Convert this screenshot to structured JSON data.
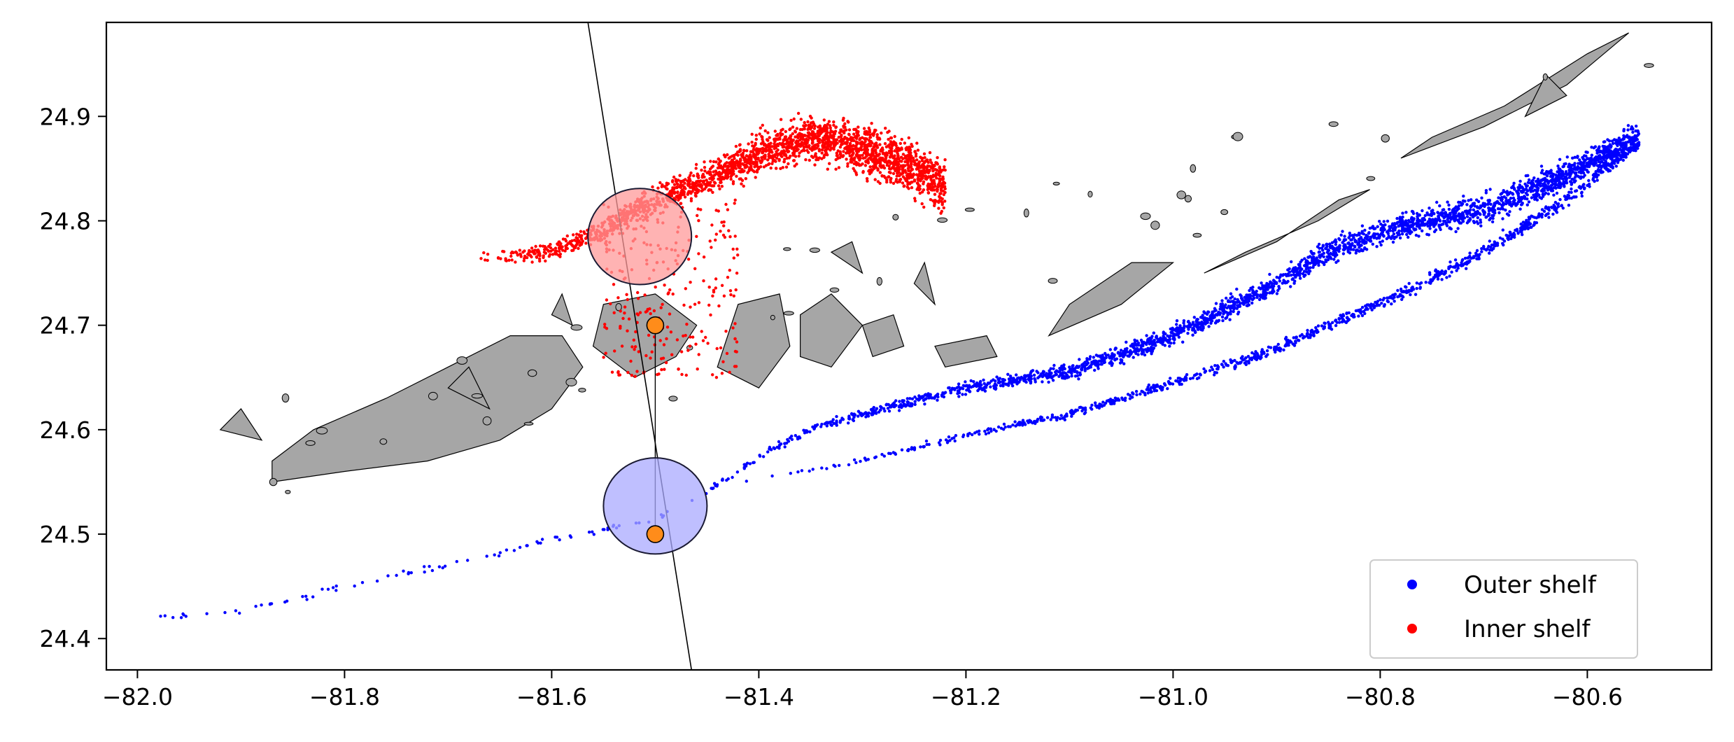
{
  "chart_data": {
    "type": "scatter",
    "title": "",
    "xlabel": "",
    "ylabel": "",
    "xlim": [
      -82.03,
      -80.48
    ],
    "ylim": [
      24.37,
      24.99
    ],
    "xticks": [
      -82.0,
      -81.8,
      -81.6,
      -81.4,
      -81.2,
      -81.0,
      -80.8,
      -80.6
    ],
    "xtick_labels": [
      "−82.0",
      "−81.8",
      "−81.6",
      "−81.4",
      "−81.2",
      "−81.0",
      "−80.8",
      "−80.6"
    ],
    "yticks": [
      24.4,
      24.5,
      24.6,
      24.7,
      24.8,
      24.9
    ],
    "ytick_labels": [
      "24.4",
      "24.5",
      "24.6",
      "24.7",
      "24.8",
      "24.9"
    ],
    "grid": false,
    "legend_position": "lower-right",
    "series": [
      {
        "name": "Outer shelf",
        "color": "#0000ff",
        "band_points": [
          [
            -81.98,
            24.42
          ],
          [
            -81.9,
            24.425
          ],
          [
            -81.8,
            24.45
          ],
          [
            -81.7,
            24.47
          ],
          [
            -81.6,
            24.495
          ],
          [
            -81.5,
            24.515
          ],
          [
            -81.45,
            24.54
          ],
          [
            -81.4,
            24.575
          ],
          [
            -81.35,
            24.6
          ],
          [
            -81.3,
            24.615
          ],
          [
            -81.2,
            24.64
          ],
          [
            -81.1,
            24.655
          ],
          [
            -81.0,
            24.69
          ],
          [
            -80.9,
            24.74
          ],
          [
            -80.85,
            24.77
          ],
          [
            -80.78,
            24.795
          ],
          [
            -80.7,
            24.81
          ],
          [
            -80.62,
            24.845
          ],
          [
            -80.55,
            24.88
          ]
        ],
        "lower_band_points": [
          [
            -81.42,
            24.55
          ],
          [
            -81.3,
            24.57
          ],
          [
            -81.2,
            24.595
          ],
          [
            -81.1,
            24.615
          ],
          [
            -81.0,
            24.645
          ],
          [
            -80.92,
            24.67
          ],
          [
            -80.85,
            24.7
          ],
          [
            -80.78,
            24.73
          ],
          [
            -80.7,
            24.77
          ],
          [
            -80.62,
            24.82
          ],
          [
            -80.55,
            24.875
          ]
        ]
      },
      {
        "name": "Inner shelf",
        "color": "#ff0000",
        "band_points": [
          [
            -81.67,
            24.765
          ],
          [
            -81.6,
            24.77
          ],
          [
            -81.55,
            24.79
          ],
          [
            -81.5,
            24.82
          ],
          [
            -81.45,
            24.84
          ],
          [
            -81.4,
            24.865
          ],
          [
            -81.35,
            24.88
          ],
          [
            -81.3,
            24.87
          ],
          [
            -81.25,
            24.85
          ],
          [
            -81.22,
            24.83
          ]
        ],
        "scatter_region": [
          [
            -81.55,
            24.65
          ],
          [
            -81.42,
            24.82
          ]
        ]
      }
    ],
    "markers": [
      {
        "x": -81.5,
        "y": 24.7,
        "color": "#ff8c1a"
      },
      {
        "x": -81.5,
        "y": 24.5,
        "color": "#ff8c1a"
      }
    ],
    "circles": [
      {
        "x": -81.515,
        "y": 24.785,
        "r": 0.05,
        "fill": "#ff9999"
      },
      {
        "x": -81.5,
        "y": 24.527,
        "r": 0.05,
        "fill": "#aaaaff"
      }
    ],
    "trajectory_line": [
      [
        -81.565,
        24.99
      ],
      [
        -81.465,
        24.37
      ]
    ],
    "connector_line": [
      [
        -81.5,
        24.7
      ],
      [
        -81.5,
        24.5
      ]
    ],
    "land_fill_color": "#a6a6a6"
  },
  "legend": {
    "outer_label": "Outer shelf",
    "inner_label": "Inner shelf"
  }
}
